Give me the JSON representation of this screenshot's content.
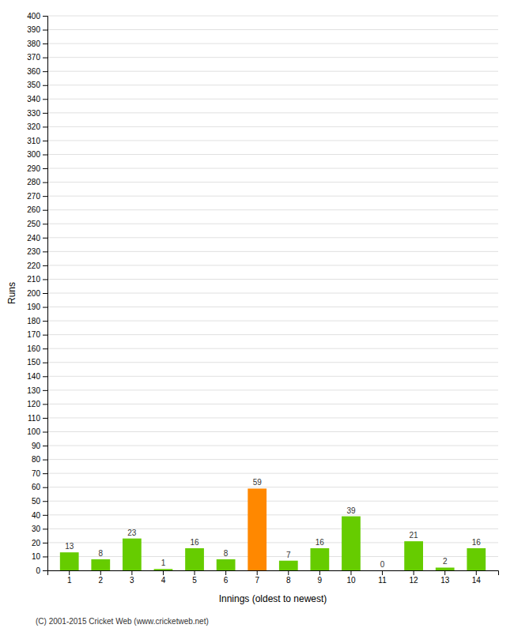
{
  "chart_data": {
    "type": "bar",
    "categories": [
      "1",
      "2",
      "3",
      "4",
      "5",
      "6",
      "7",
      "8",
      "9",
      "10",
      "11",
      "12",
      "13",
      "14"
    ],
    "values": [
      13,
      8,
      23,
      1,
      16,
      8,
      59,
      7,
      16,
      39,
      0,
      21,
      2,
      16
    ],
    "colors": [
      "#66cc00",
      "#66cc00",
      "#66cc00",
      "#66cc00",
      "#66cc00",
      "#66cc00",
      "#ff8800",
      "#66cc00",
      "#66cc00",
      "#66cc00",
      "#66cc00",
      "#66cc00",
      "#66cc00",
      "#66cc00"
    ],
    "xlabel": "Innings (oldest to newest)",
    "ylabel": "Runs",
    "ylim": [
      0,
      400
    ],
    "yticks": [
      0,
      10,
      20,
      30,
      40,
      50,
      60,
      70,
      80,
      90,
      100,
      110,
      120,
      130,
      140,
      150,
      160,
      170,
      180,
      190,
      200,
      210,
      220,
      230,
      240,
      250,
      260,
      270,
      280,
      290,
      300,
      310,
      320,
      330,
      340,
      350,
      360,
      370,
      380,
      390,
      400
    ],
    "grid": true,
    "data_labels": true,
    "annotations": [
      "(C) 2001-2015 Cricket Web (www.cricketweb.net)"
    ]
  }
}
